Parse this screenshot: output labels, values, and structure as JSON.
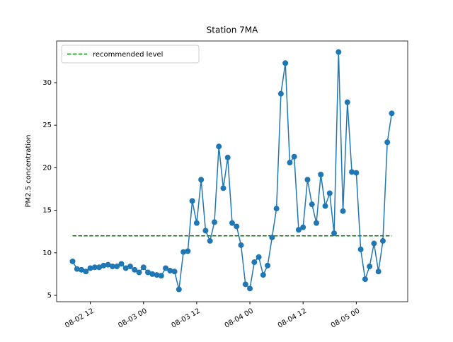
{
  "chart_data": {
    "type": "line",
    "title": "Station 7MA",
    "ylabel": "PM2.5 concentration",
    "x": [
      "08-02 08",
      "08-02 09",
      "08-02 10",
      "08-02 11",
      "08-02 12",
      "08-02 13",
      "08-02 14",
      "08-02 15",
      "08-02 16",
      "08-02 17",
      "08-02 18",
      "08-02 19",
      "08-02 20",
      "08-02 21",
      "08-02 22",
      "08-02 23",
      "08-03 00",
      "08-03 01",
      "08-03 02",
      "08-03 03",
      "08-03 04",
      "08-03 05",
      "08-03 06",
      "08-03 07",
      "08-03 08",
      "08-03 09",
      "08-03 10",
      "08-03 11",
      "08-03 12",
      "08-03 13",
      "08-03 14",
      "08-03 15",
      "08-03 16",
      "08-03 17",
      "08-03 18",
      "08-03 19",
      "08-03 20",
      "08-03 21",
      "08-03 22",
      "08-03 23",
      "08-04 00",
      "08-04 01",
      "08-04 02",
      "08-04 03",
      "08-04 04",
      "08-04 05",
      "08-04 06",
      "08-04 07",
      "08-04 08",
      "08-04 09",
      "08-04 10",
      "08-04 11",
      "08-04 12",
      "08-04 13",
      "08-04 14",
      "08-04 15",
      "08-04 16",
      "08-04 17",
      "08-04 18",
      "08-04 19",
      "08-04 20",
      "08-04 21",
      "08-04 22",
      "08-04 23",
      "08-05 00",
      "08-05 01",
      "08-05 02",
      "08-05 03",
      "08-05 04",
      "08-05 05",
      "08-05 06",
      "08-05 07",
      "08-05 08"
    ],
    "series": [
      {
        "color": "#1f77b4",
        "values": [
          9.0,
          8.1,
          8.0,
          7.8,
          8.2,
          8.3,
          8.3,
          8.5,
          8.6,
          8.4,
          8.4,
          8.7,
          8.2,
          8.4,
          8.0,
          7.7,
          8.3,
          7.7,
          7.5,
          7.4,
          7.3,
          8.2,
          7.9,
          7.8,
          5.7,
          10.1,
          10.2,
          16.1,
          13.5,
          18.6,
          12.6,
          11.4,
          13.6,
          22.5,
          17.6,
          21.2,
          13.5,
          13.1,
          10.9,
          6.3,
          5.8,
          8.9,
          9.5,
          7.4,
          8.5,
          11.8,
          15.2,
          28.7,
          32.3,
          20.6,
          21.3,
          12.7,
          13.0,
          18.6,
          15.7,
          13.5,
          19.2,
          15.5,
          17.0,
          12.3,
          33.6,
          14.9,
          27.7,
          19.5,
          19.4,
          10.4,
          6.9,
          8.4,
          11.1,
          7.8,
          11.4,
          23.0,
          26.4
        ]
      }
    ],
    "reference": {
      "name": "recommended level",
      "value": 12,
      "color": "green",
      "linestyle": "dashed"
    },
    "xlim": [
      "08-02 04:24",
      "08-05 11:36"
    ],
    "xticks": [
      "08-02 12",
      "08-03 00",
      "08-03 12",
      "08-04 00",
      "08-04 12",
      "08-05 00"
    ],
    "ylim": [
      4.25,
      34.9
    ],
    "yticks": [
      5,
      10,
      15,
      20,
      25,
      30
    ],
    "legend": "upper left"
  }
}
